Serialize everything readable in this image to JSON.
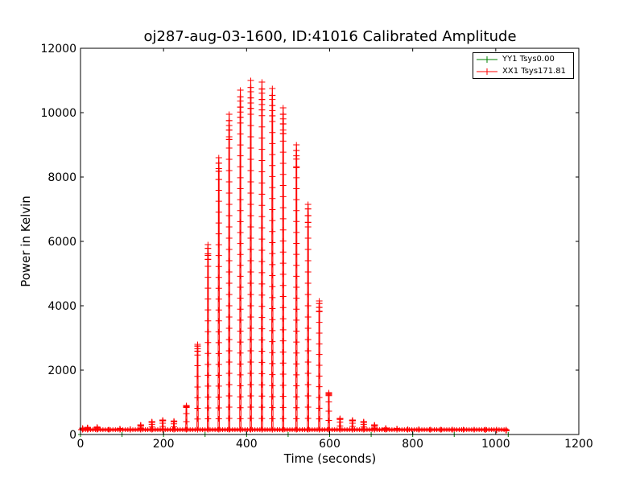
{
  "chart_data": {
    "type": "line",
    "title": "oj287-aug-03-1600, ID:41016 Calibrated Amplitude",
    "xlabel": "Time (seconds)",
    "ylabel": "Power in Kelvin",
    "xlim": [
      0,
      1200
    ],
    "ylim": [
      0,
      12000
    ],
    "xticks": [
      0,
      200,
      400,
      600,
      800,
      1000,
      1200
    ],
    "yticks": [
      0,
      2000,
      4000,
      6000,
      8000,
      10000,
      12000
    ],
    "grid": false,
    "legend_position": "top-right",
    "marker": "plus",
    "series": [
      {
        "name": "YY1 Tsys0.00",
        "color": "#008000",
        "x": [
          0,
          100,
          200,
          300,
          400,
          500,
          600,
          700,
          800,
          900,
          1030
        ],
        "y": [
          0,
          0,
          0,
          0,
          0,
          0,
          0,
          0,
          0,
          0,
          0
        ]
      },
      {
        "name": "XX1 Tsys171.81",
        "color": "#ff0000",
        "baseline": 150,
        "spikes_x": [
          5,
          17,
          40,
          68,
          95,
          120,
          145,
          172,
          198,
          225,
          255,
          282,
          307,
          333,
          358,
          385,
          410,
          437,
          462,
          488,
          520,
          548,
          575,
          598,
          625,
          655,
          682,
          708,
          735,
          762,
          788,
          815,
          842,
          868,
          895,
          922,
          948,
          975,
          1002,
          1025
        ],
        "spikes_y": [
          200,
          220,
          230,
          150,
          180,
          170,
          300,
          400,
          450,
          420,
          900,
          2800,
          5900,
          8600,
          9950,
          10700,
          11000,
          10950,
          10750,
          10150,
          9000,
          7150,
          4150,
          1300,
          500,
          450,
          400,
          300,
          200,
          180,
          160,
          160,
          150,
          150,
          150,
          150,
          150,
          140,
          130,
          120
        ]
      }
    ]
  }
}
